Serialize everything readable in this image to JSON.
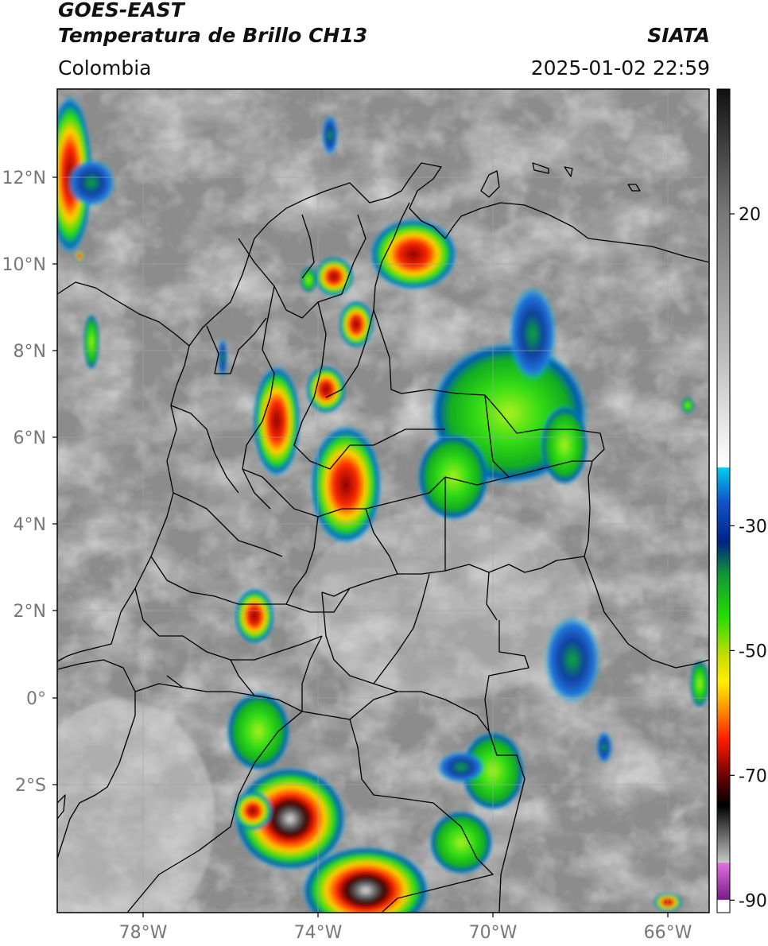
{
  "header": {
    "satellite": "GOES-EAST",
    "product": "Temperatura de Brillo CH13",
    "agency": "SIATA",
    "region": "Colombia",
    "datetime": "2025-01-02 22:59"
  },
  "map": {
    "lat_labels": [
      "12°N",
      "10°N",
      "8°N",
      "6°N",
      "4°N",
      "2°N",
      "0°",
      "2°S"
    ],
    "lon_labels": [
      "78°W",
      "74°W",
      "70°W",
      "66°W"
    ],
    "colors": {
      "background_gray": "#8a8a8a",
      "border_line": "#000000",
      "grid_line": "#b0b0b0"
    }
  },
  "colorbar": {
    "tick_labels": [
      "20",
      "-30",
      "-50",
      "-70",
      "-90"
    ],
    "ticks": [
      20,
      -30,
      -50,
      -70,
      -90
    ],
    "range": [
      -92,
      40
    ]
  }
}
